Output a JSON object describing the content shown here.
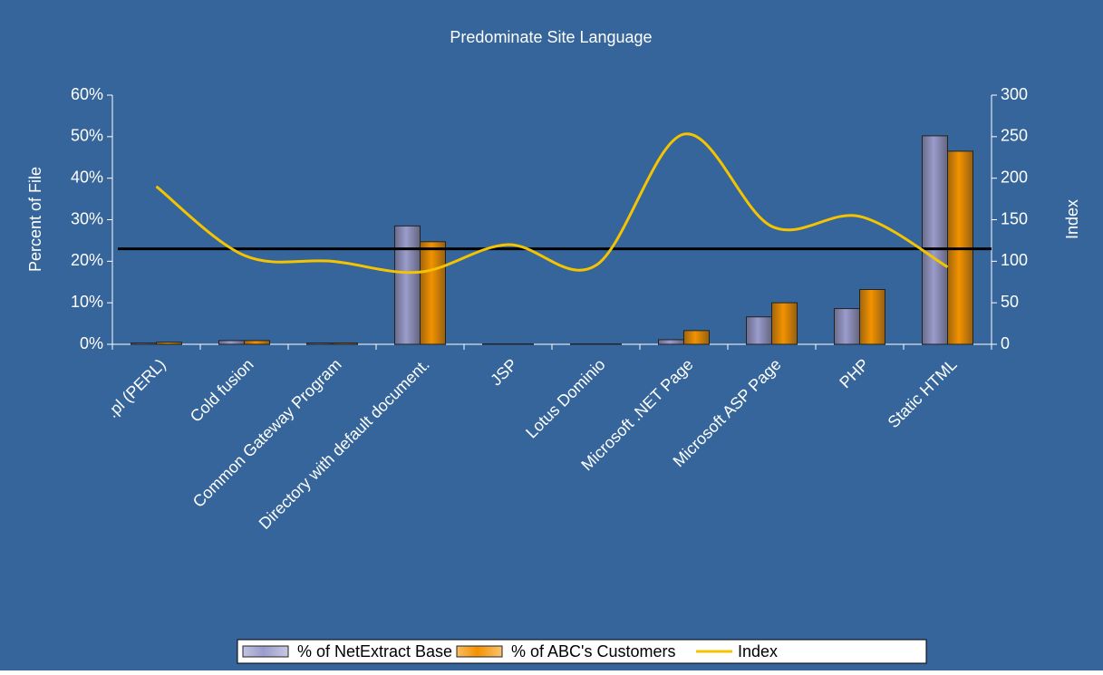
{
  "chart_data": {
    "type": "bar",
    "title": "Predominate Site Language",
    "categories": [
      ".pl (PERL)",
      "Cold fusion",
      "Common Gateway Program",
      "Directory with default document.",
      "JSP",
      "Lotus Dominio",
      "Microsoft .NET Page",
      "Microsoft ASP Page",
      "PHP",
      "Static HTML"
    ],
    "series": [
      {
        "name": "% of NetExtract Base",
        "color": "#9a9ccc",
        "values": [
          0.3,
          0.9,
          0.3,
          28.5,
          0.1,
          0.1,
          1.1,
          6.6,
          8.6,
          50.2
        ]
      },
      {
        "name": "% of ABC's Customers",
        "color": "#f39200",
        "values": [
          0.5,
          0.9,
          0.3,
          24.7,
          0.1,
          0.1,
          3.3,
          10,
          13.2,
          46.5
        ]
      },
      {
        "name": "Index",
        "type": "line",
        "axis": "y2",
        "color": "#f5c400",
        "values": [
          190,
          107,
          100,
          87,
          120,
          95,
          253,
          142,
          154,
          93
        ]
      }
    ],
    "reference_line_y2": 115,
    "ylabel": "Percent of File",
    "y2label": "Index",
    "ylim": [
      0,
      60
    ],
    "yticks": [
      {
        "value": 0,
        "label": "0%"
      },
      {
        "value": 10,
        "label": "10%"
      },
      {
        "value": 20,
        "label": "20%"
      },
      {
        "value": 30,
        "label": "30%"
      },
      {
        "value": 40,
        "label": "40%"
      },
      {
        "value": 50,
        "label": "50%"
      },
      {
        "value": 60,
        "label": "60%"
      }
    ],
    "y2lim": [
      0,
      300
    ],
    "y2ticks": [
      0,
      50,
      100,
      150,
      200,
      250,
      300
    ],
    "legend": "bottom"
  }
}
